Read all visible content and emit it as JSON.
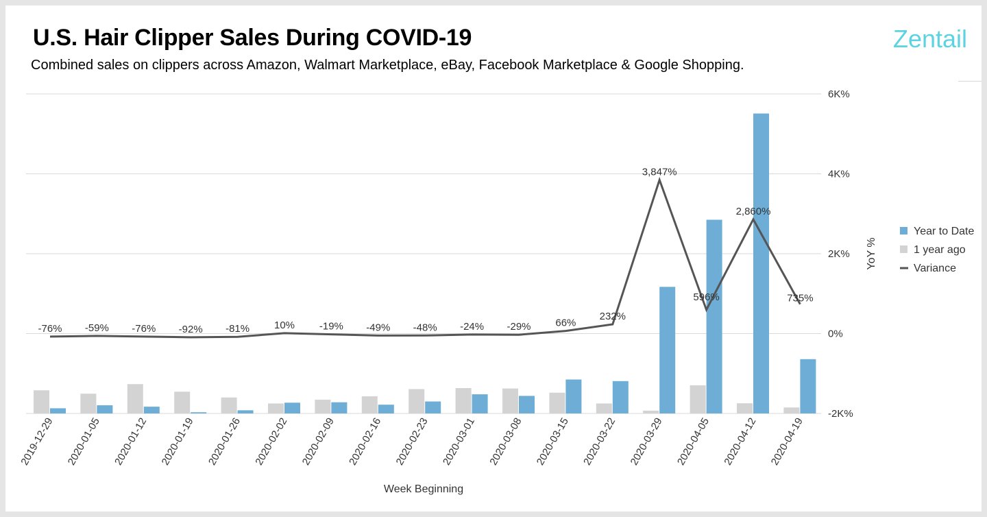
{
  "header": {
    "title": "U.S. Hair Clipper Sales During COVID-19",
    "subtitle": "Combined sales on clippers across Amazon, Walmart Marketplace, eBay, Facebook Marketplace & Google Shopping.",
    "logo": "Zentail"
  },
  "colors": {
    "ytd": "#6eaed6",
    "prior": "#d3d3d3",
    "variance": "#555555",
    "grid": "#d9d9d9"
  },
  "chart_data": {
    "type": "bar",
    "xlabel": "Week Beginning",
    "ylabel": "YoY %",
    "categories": [
      "2019-12-29",
      "2020-01-05",
      "2020-01-12",
      "2020-01-19",
      "2020-01-26",
      "2020-02-02",
      "2020-02-09",
      "2020-02-16",
      "2020-02-23",
      "2020-03-01",
      "2020-03-08",
      "2020-03-15",
      "2020-03-22",
      "2020-03-29",
      "2020-04-05",
      "2020-04-12",
      "2020-04-19"
    ],
    "right_axis": {
      "ylim": [
        -2000,
        6000
      ],
      "ticks": [
        -2000,
        0,
        2000,
        4000,
        6000
      ],
      "tick_labels": [
        "-2K%",
        "0%",
        "2K%",
        "4K%",
        "6K%"
      ]
    },
    "series": [
      {
        "name": "Year to Date",
        "kind": "bar",
        "values": [
          -1870,
          -1795,
          -1830,
          -1970,
          -1920,
          -1730,
          -1720,
          -1780,
          -1700,
          -1520,
          -1560,
          -1150,
          -1190,
          1170,
          2850,
          5510,
          -640
        ]
      },
      {
        "name": "1 year ago",
        "kind": "bar",
        "values": [
          -1420,
          -1505,
          -1265,
          -1455,
          -1600,
          -1750,
          -1655,
          -1570,
          -1390,
          -1365,
          -1375,
          -1480,
          -1750,
          -1930,
          -1295,
          -1745,
          -1850
        ]
      },
      {
        "name": "Variance",
        "kind": "line",
        "values": [
          -76,
          -59,
          -76,
          -92,
          -81,
          10,
          -19,
          -49,
          -48,
          -24,
          -29,
          66,
          232,
          3847,
          596,
          2860,
          735
        ],
        "labels": [
          "-76%",
          "-59%",
          "-76%",
          "-92%",
          "-81%",
          "10%",
          "-19%",
          "-49%",
          "-48%",
          "-24%",
          "-29%",
          "66%",
          "232%",
          "3,847%",
          "596%",
          "2,860%",
          "735%"
        ]
      }
    ],
    "legend": [
      "Year to Date",
      "1 year ago",
      "Variance"
    ],
    "legend_position": "right"
  }
}
